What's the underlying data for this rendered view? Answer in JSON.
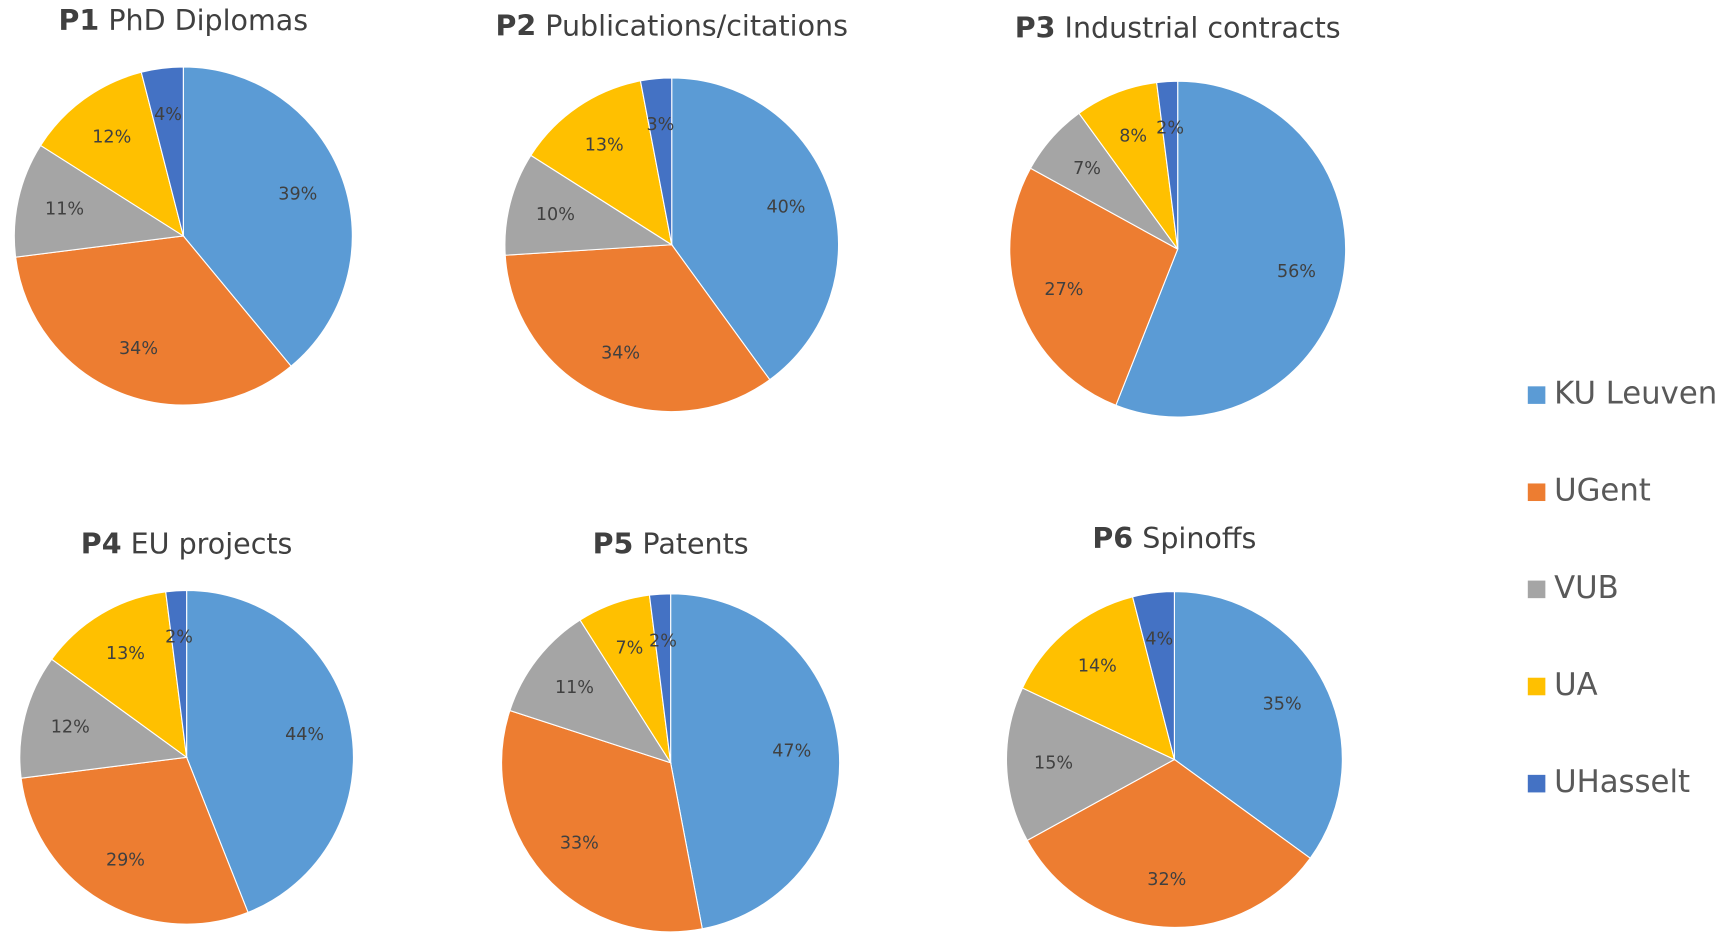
{
  "chart_data": [
    {
      "type": "pie",
      "title_label": "P1",
      "title": "PhD Diplomas",
      "values": [
        39,
        34,
        11,
        12,
        4
      ],
      "value_labels": [
        "39%",
        "34%",
        "11%",
        "12%",
        "4%"
      ]
    },
    {
      "type": "pie",
      "title_label": "P2",
      "title": "Publications/citations",
      "values": [
        40,
        34,
        10,
        13,
        3
      ],
      "value_labels": [
        "40%",
        "34%",
        "10%",
        "13%",
        "3%"
      ]
    },
    {
      "type": "pie",
      "title_label": "P3",
      "title": "Industrial contracts",
      "values": [
        56,
        27,
        7,
        8,
        2
      ],
      "value_labels": [
        "56%",
        "27%",
        "7%",
        "8%",
        "2%"
      ]
    },
    {
      "type": "pie",
      "title_label": "P4",
      "title": "EU projects",
      "values": [
        44,
        29,
        12,
        13,
        2
      ],
      "value_labels": [
        "44%",
        "29%",
        "12%",
        "13%",
        "2%"
      ]
    },
    {
      "type": "pie",
      "title_label": "P5",
      "title": "Patents",
      "values": [
        47,
        33,
        11,
        7,
        2
      ],
      "value_labels": [
        "47%",
        "33%",
        "11%",
        "7%",
        "2%"
      ]
    },
    {
      "type": "pie",
      "title_label": "P6",
      "title": "Spinoffs",
      "values": [
        35,
        32,
        15,
        14,
        4
      ],
      "value_labels": [
        "35%",
        "32%",
        "15%",
        "14%",
        "4%"
      ]
    }
  ],
  "legend": {
    "categories": [
      "KU Leuven",
      "UGent",
      "VUB",
      "UA",
      "UHasselt"
    ],
    "colors": [
      "#5b9bd5",
      "#ed7d31",
      "#a5a5a5",
      "#ffc000",
      "#4472c4"
    ]
  }
}
